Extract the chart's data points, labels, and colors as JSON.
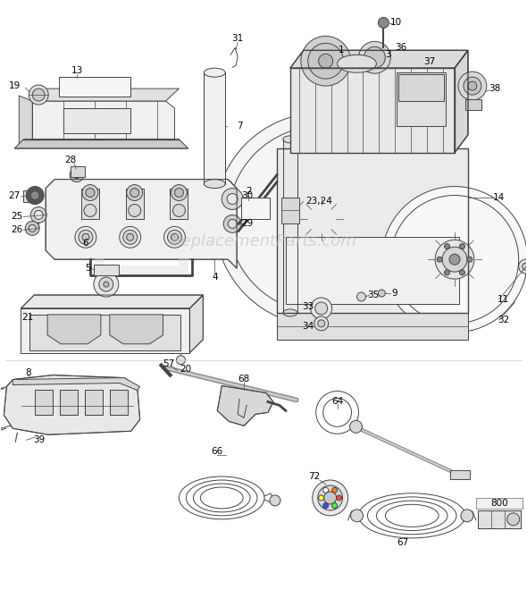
{
  "background_color": "#ffffff",
  "line_color": "#444444",
  "label_color": "#000000",
  "watermark": "ReplacementParts.com",
  "watermark_color": "#bbbbbb",
  "figsize": [
    5.9,
    6.6
  ],
  "dpi": 100,
  "label_fontsize": 7.5,
  "lw": 0.7
}
